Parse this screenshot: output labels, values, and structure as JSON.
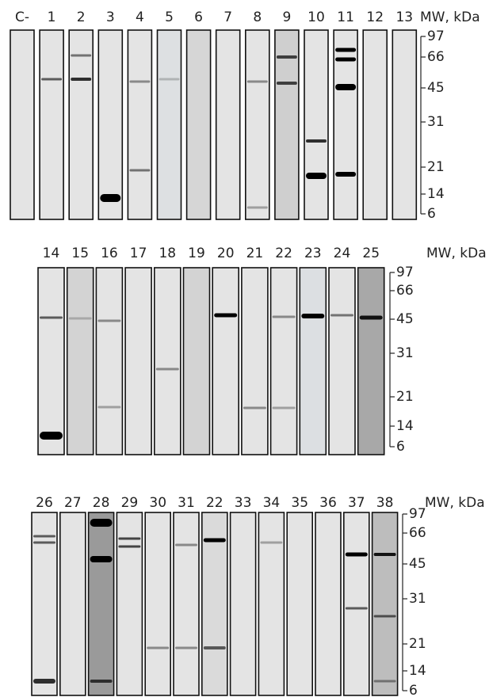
{
  "panels": [
    {
      "lanes": [
        "C-",
        "1",
        "2",
        "3",
        "4",
        "5",
        "6",
        "7",
        "8",
        "9",
        "10",
        "11",
        "12",
        "13"
      ],
      "mw_title": "MW, kDa",
      "markers": [
        97,
        66,
        45,
        31,
        21,
        14,
        6
      ]
    },
    {
      "lanes": [
        "14",
        "15",
        "16",
        "17",
        "18",
        "19",
        "20",
        "21",
        "22",
        "23",
        "24",
        "25"
      ],
      "mw_title": "MW, kDa",
      "markers": [
        97,
        66,
        45,
        31,
        21,
        14,
        6
      ]
    },
    {
      "lanes": [
        "26",
        "27",
        "28",
        "29",
        "30",
        "31",
        "22",
        "33",
        "34",
        "35",
        "36",
        "37",
        "38"
      ],
      "mw_title": "MW, kDa",
      "markers": [
        97,
        66,
        45,
        31,
        21,
        14,
        6
      ]
    }
  ]
}
